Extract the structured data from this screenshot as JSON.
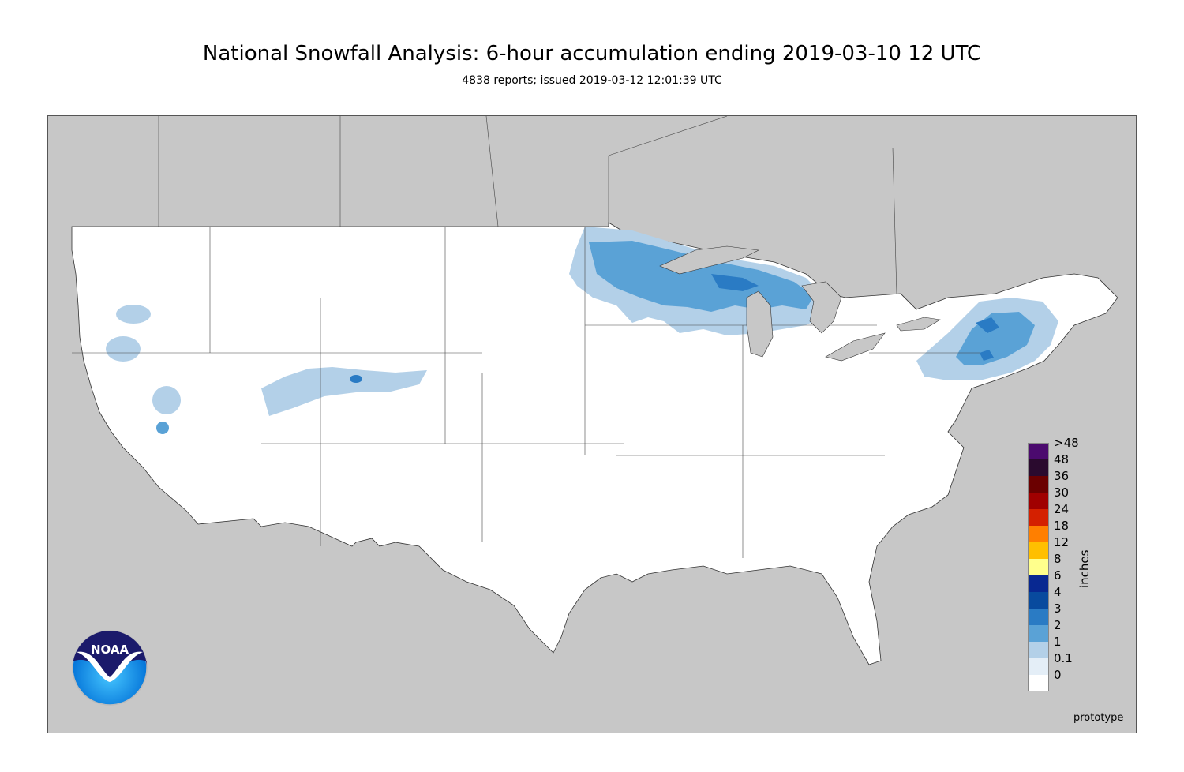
{
  "title": "National Snowfall Analysis: 6-hour accumulation ending 2019-03-10 12 UTC",
  "subtitle": "4838 reports; issued 2019-03-12 12:01:39 UTC",
  "legend": {
    "units": "inches",
    "bins": [
      {
        "label": ">48",
        "color": "#4b0a6e"
      },
      {
        "label": "48",
        "color": "#2a0a2e"
      },
      {
        "label": "36",
        "color": "#6b0000"
      },
      {
        "label": "30",
        "color": "#a00000"
      },
      {
        "label": "24",
        "color": "#d42000"
      },
      {
        "label": "18",
        "color": "#ff7f00"
      },
      {
        "label": "12",
        "color": "#ffbf00"
      },
      {
        "label": "8",
        "color": "#ffff8c"
      },
      {
        "label": "6",
        "color": "#082891"
      },
      {
        "label": "4",
        "color": "#084a9e"
      },
      {
        "label": "3",
        "color": "#2a7bc4"
      },
      {
        "label": "2",
        "color": "#5aa2d6"
      },
      {
        "label": "1",
        "color": "#b3d0e8"
      },
      {
        "label": "0.1",
        "color": "#e4eef7"
      },
      {
        "label": "0",
        "color": "#ffffff"
      }
    ]
  },
  "map": {
    "land_color": "#ffffff",
    "outside_color": "#c7c7c7",
    "snow_light": "#b3d0e8",
    "snow_medium": "#5aa2d6",
    "snow_heavy": "#2a7bc4"
  },
  "logo": {
    "text": "NOAA",
    "icon": "noaa-logo-icon"
  },
  "watermark": "prototype"
}
